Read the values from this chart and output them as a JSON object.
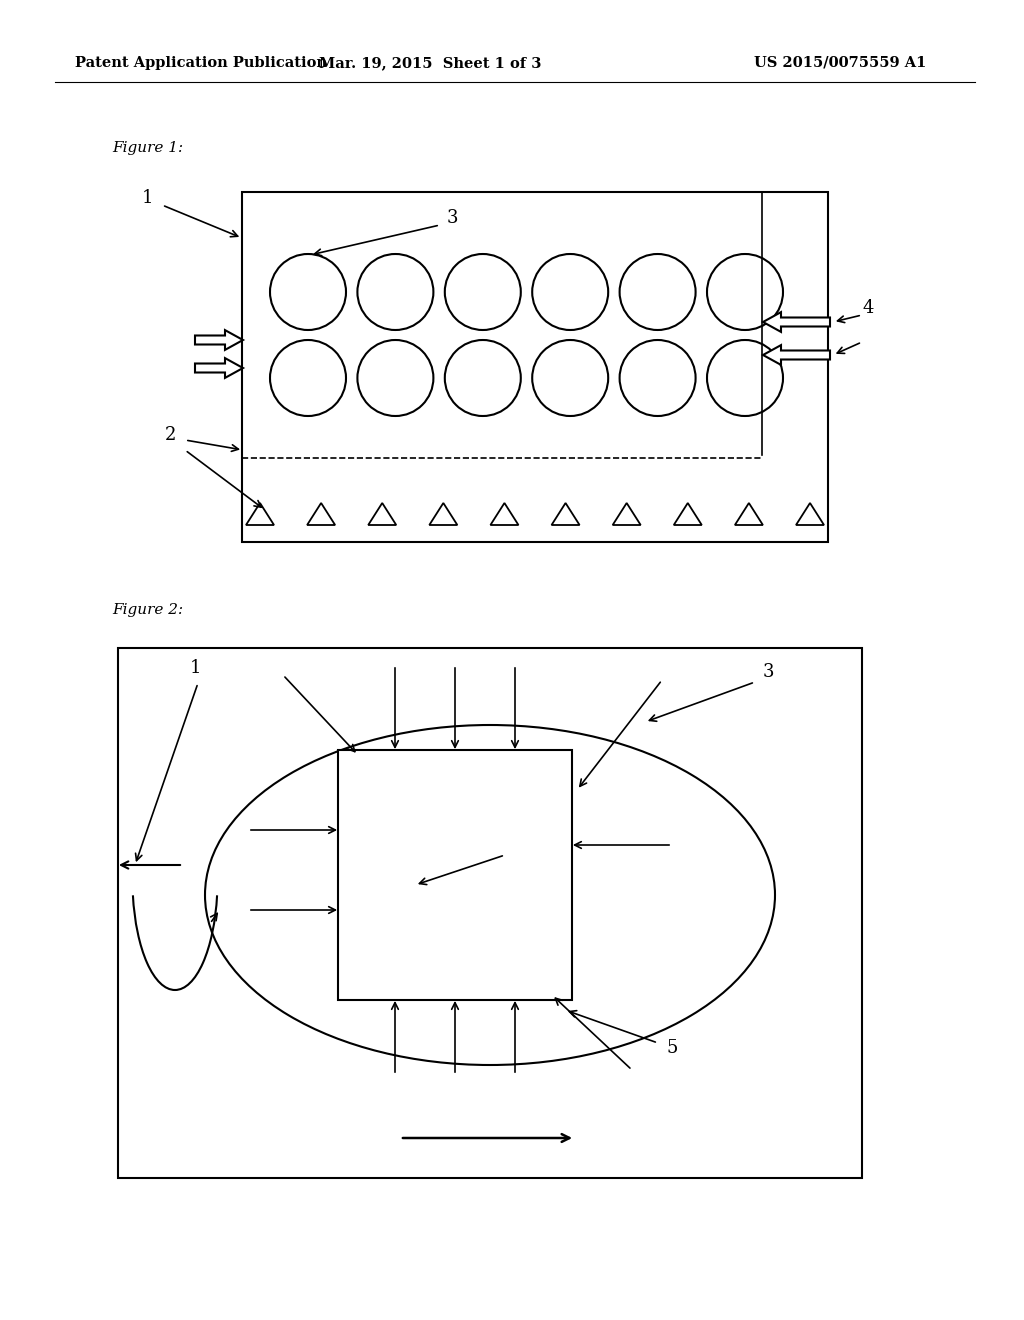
{
  "background_color": "#ffffff",
  "header_left": "Patent Application Publication",
  "header_mid": "Mar. 19, 2015  Sheet 1 of 3",
  "header_right": "US 2015/0075559 A1",
  "fig1_label": "Figure 1:",
  "fig2_label": "Figure 2:"
}
